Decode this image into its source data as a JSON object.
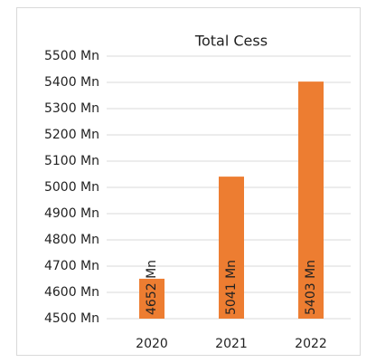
{
  "chart_data": {
    "type": "bar",
    "title": "Total Cess",
    "categories": [
      "2020",
      "2021",
      "2022"
    ],
    "values": [
      4652,
      5041,
      5403
    ],
    "value_labels": [
      "4652 Mn",
      "5041 Mn",
      "5403 Mn"
    ],
    "color": "#ed7d31",
    "ylim": [
      4500,
      5500
    ],
    "yticks": [
      {
        "value": 4500,
        "label": "4500 Mn"
      },
      {
        "value": 4600,
        "label": "4600 Mn"
      },
      {
        "value": 4700,
        "label": "4700 Mn"
      },
      {
        "value": 4800,
        "label": "4800 Mn"
      },
      {
        "value": 4900,
        "label": "4900 Mn"
      },
      {
        "value": 5000,
        "label": "5000 Mn"
      },
      {
        "value": 5100,
        "label": "5100 Mn"
      },
      {
        "value": 5200,
        "label": "5200 Mn"
      },
      {
        "value": 5300,
        "label": "5300 Mn"
      },
      {
        "value": 5400,
        "label": "5400 Mn"
      },
      {
        "value": 5500,
        "label": "5500 Mn"
      }
    ],
    "grid": true
  }
}
